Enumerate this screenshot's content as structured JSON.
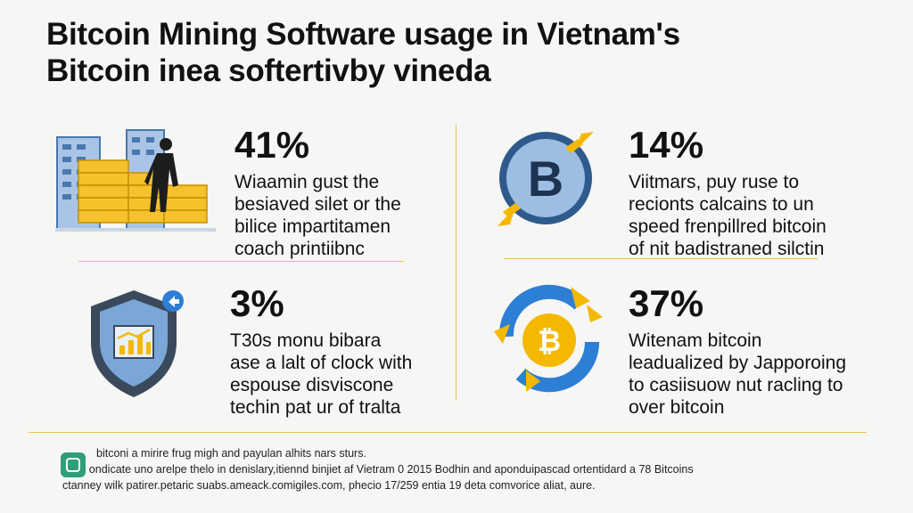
{
  "title": {
    "line1": "Bitcoin Mining Software usage in Vietnam's",
    "line2": "Bitcoin inea softertivby vineda"
  },
  "stats": [
    {
      "percent": "41%",
      "description": "Wiaamin gust the\nbesiaved silet or the\nbilice impartitamen\ncoach printiibnc",
      "icon": "city-bitcoin-bars-icon"
    },
    {
      "percent": "14%",
      "description": "Viitmars, puy ruse to\nrecionts calcains to un\nspeed frenpillred bitcoin\nof nit badistraned silctin",
      "icon": "bitcoin-coin-arrows-icon"
    },
    {
      "percent": "3%",
      "description": "T30s monu bibara\nase a lalt of clock with\nespouse disviscone\ntechin pat ur of tralta",
      "icon": "shield-chart-icon"
    },
    {
      "percent": "37%",
      "description": "Witenam bitcoin\nleadualized by Japporoing\nto casiisuow nut racling to\nover bitcoin",
      "icon": "bitcoin-cycle-icon"
    }
  ],
  "footer": {
    "line1": "bitconi a mirire frug migh and payulan alhits nars sturs.",
    "line2": "B ondicate uno arelpe thelo in denislary,itiennd binjiet af Vietram 0 2015 Bodhin and aponduipascad ortentidard a 78 Bitcoins",
    "line3": "ctanney wilk patirer.petaric suabs.ameack.comigiles.com, phecio 17/259 entia 19 deta comvorice aliat, aure."
  },
  "colors": {
    "accent": "#f5b800",
    "blue": "#4a86c5",
    "divider": "#e8c14a",
    "text": "#111111"
  }
}
